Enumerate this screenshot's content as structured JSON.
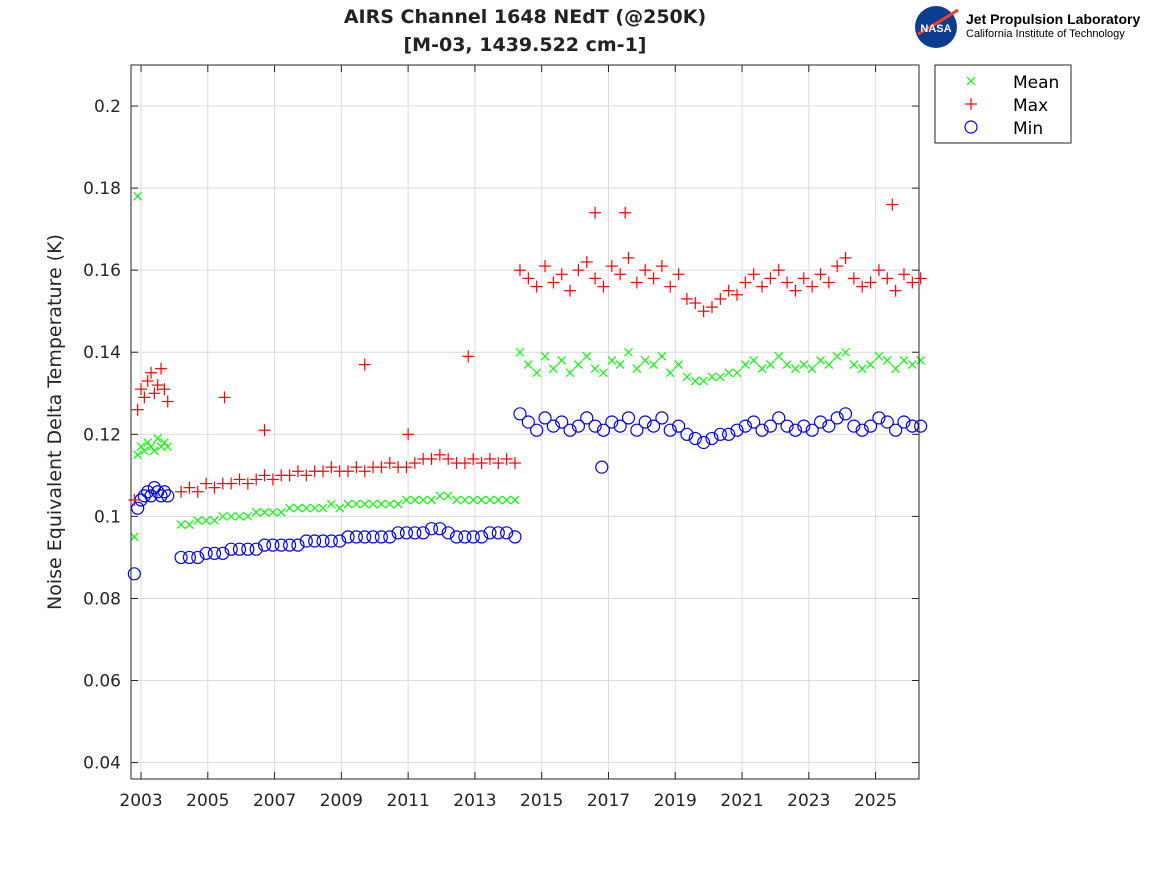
{
  "logo": {
    "org": "Jet Propulsion Laboratory",
    "sub": "California Institute of Technology",
    "badge": "NASA"
  },
  "chart_data": {
    "type": "scatter",
    "title": [
      "AIRS Channel 1648 NEdT (@250K)",
      "[M-03, 1439.522 cm-1]"
    ],
    "xlabel": "",
    "ylabel": "Noise Equivalent Delta Temperature (K)",
    "xlim": [
      2002.7,
      2026.3
    ],
    "ylim": [
      0.036,
      0.21
    ],
    "xticks": [
      2003,
      2005,
      2007,
      2009,
      2011,
      2013,
      2015,
      2017,
      2019,
      2021,
      2023,
      2025
    ],
    "yticks": [
      0.04,
      0.06,
      0.08,
      0.1,
      0.12,
      0.14,
      0.16,
      0.18,
      0.2
    ],
    "ytick_labels": [
      "0.04",
      "0.06",
      "0.08",
      "0.1",
      "0.12",
      "0.14",
      "0.16",
      "0.18",
      "0.2"
    ],
    "grid": true,
    "legend_placement": "outside-top-right",
    "x": [
      2002.8,
      2002.9,
      2003.0,
      2003.1,
      2003.2,
      2003.3,
      2003.4,
      2003.5,
      2003.6,
      2003.7,
      2003.8,
      2004.2,
      2004.45,
      2004.7,
      2004.95,
      2005.2,
      2005.45,
      2005.7,
      2005.95,
      2006.2,
      2006.45,
      2006.7,
      2006.95,
      2007.2,
      2007.45,
      2007.7,
      2007.95,
      2008.2,
      2008.45,
      2008.7,
      2008.95,
      2009.2,
      2009.45,
      2009.7,
      2009.95,
      2010.2,
      2010.45,
      2010.7,
      2010.95,
      2011.2,
      2011.45,
      2011.7,
      2011.95,
      2012.2,
      2012.45,
      2012.7,
      2012.95,
      2013.2,
      2013.45,
      2013.7,
      2013.95,
      2014.2,
      2014.35,
      2014.6,
      2014.85,
      2015.1,
      2015.35,
      2015.6,
      2015.85,
      2016.1,
      2016.35,
      2016.6,
      2016.85,
      2017.1,
      2017.35,
      2017.6,
      2017.85,
      2018.1,
      2018.35,
      2018.6,
      2018.85,
      2019.1,
      2019.35,
      2019.6,
      2019.85,
      2020.1,
      2020.35,
      2020.6,
      2020.85,
      2021.1,
      2021.35,
      2021.6,
      2021.85,
      2022.1,
      2022.35,
      2022.6,
      2022.85,
      2023.1,
      2023.35,
      2023.6,
      2023.85,
      2024.1,
      2024.35,
      2024.6,
      2024.85,
      2025.1,
      2025.35,
      2025.6,
      2025.85,
      2026.1,
      2026.35
    ],
    "series": [
      {
        "name": "Mean",
        "marker": "x",
        "color": "#00ff00",
        "values": [
          0.095,
          0.115,
          0.117,
          0.116,
          0.118,
          0.117,
          0.116,
          0.119,
          0.117,
          0.118,
          0.117,
          0.098,
          0.098,
          0.099,
          0.099,
          0.099,
          0.1,
          0.1,
          0.1,
          0.1,
          0.101,
          0.101,
          0.101,
          0.101,
          0.102,
          0.102,
          0.102,
          0.102,
          0.102,
          0.103,
          0.102,
          0.103,
          0.103,
          0.103,
          0.103,
          0.103,
          0.103,
          0.103,
          0.104,
          0.104,
          0.104,
          0.104,
          0.105,
          0.105,
          0.104,
          0.104,
          0.104,
          0.104,
          0.104,
          0.104,
          0.104,
          0.104,
          0.14,
          0.137,
          0.135,
          0.139,
          0.136,
          0.138,
          0.135,
          0.137,
          0.139,
          0.136,
          0.135,
          0.138,
          0.137,
          0.14,
          0.136,
          0.138,
          0.137,
          0.139,
          0.135,
          0.137,
          0.134,
          0.133,
          0.133,
          0.134,
          0.134,
          0.135,
          0.135,
          0.137,
          0.138,
          0.136,
          0.137,
          0.139,
          0.137,
          0.136,
          0.137,
          0.136,
          0.138,
          0.137,
          0.139,
          0.14,
          0.137,
          0.136,
          0.137,
          0.139,
          0.138,
          0.136,
          0.138,
          0.137,
          0.138
        ],
        "extra_points": [
          [
            2002.9,
            0.178
          ]
        ]
      },
      {
        "name": "Max",
        "marker": "+",
        "color": "#ff0000",
        "values": [
          0.104,
          0.126,
          0.131,
          0.129,
          0.133,
          0.135,
          0.13,
          0.132,
          0.136,
          0.131,
          0.128,
          0.106,
          0.107,
          0.106,
          0.108,
          0.107,
          0.108,
          0.108,
          0.109,
          0.108,
          0.109,
          0.11,
          0.109,
          0.11,
          0.11,
          0.111,
          0.11,
          0.111,
          0.111,
          0.112,
          0.111,
          0.111,
          0.112,
          0.111,
          0.112,
          0.112,
          0.113,
          0.112,
          0.112,
          0.113,
          0.114,
          0.114,
          0.115,
          0.114,
          0.113,
          0.113,
          0.114,
          0.113,
          0.114,
          0.113,
          0.114,
          0.113,
          0.16,
          0.158,
          0.156,
          0.161,
          0.157,
          0.159,
          0.155,
          0.16,
          0.162,
          0.158,
          0.156,
          0.161,
          0.159,
          0.163,
          0.157,
          0.16,
          0.158,
          0.161,
          0.156,
          0.159,
          0.153,
          0.152,
          0.15,
          0.151,
          0.153,
          0.155,
          0.154,
          0.157,
          0.159,
          0.156,
          0.158,
          0.16,
          0.157,
          0.155,
          0.158,
          0.156,
          0.159,
          0.157,
          0.161,
          0.163,
          0.158,
          0.156,
          0.157,
          0.16,
          0.158,
          0.155,
          0.159,
          0.157,
          0.158
        ],
        "extra_points": [
          [
            2005.5,
            0.129
          ],
          [
            2006.7,
            0.121
          ],
          [
            2009.7,
            0.137
          ],
          [
            2011.0,
            0.12
          ],
          [
            2012.8,
            0.139
          ],
          [
            2016.6,
            0.174
          ],
          [
            2017.5,
            0.174
          ],
          [
            2025.5,
            0.176
          ]
        ]
      },
      {
        "name": "Min",
        "marker": "o",
        "color": "#0000ff",
        "values": [
          0.086,
          0.102,
          0.104,
          0.105,
          0.106,
          0.105,
          0.107,
          0.106,
          0.105,
          0.106,
          0.105,
          0.09,
          0.09,
          0.09,
          0.091,
          0.091,
          0.091,
          0.092,
          0.092,
          0.092,
          0.092,
          0.093,
          0.093,
          0.093,
          0.093,
          0.093,
          0.094,
          0.094,
          0.094,
          0.094,
          0.094,
          0.095,
          0.095,
          0.095,
          0.095,
          0.095,
          0.095,
          0.096,
          0.096,
          0.096,
          0.096,
          0.097,
          0.097,
          0.096,
          0.095,
          0.095,
          0.095,
          0.095,
          0.096,
          0.096,
          0.096,
          0.095,
          0.125,
          0.123,
          0.121,
          0.124,
          0.122,
          0.123,
          0.121,
          0.122,
          0.124,
          0.122,
          0.121,
          0.123,
          0.122,
          0.124,
          0.121,
          0.123,
          0.122,
          0.124,
          0.121,
          0.122,
          0.12,
          0.119,
          0.118,
          0.119,
          0.12,
          0.12,
          0.121,
          0.122,
          0.123,
          0.121,
          0.122,
          0.124,
          0.122,
          0.121,
          0.122,
          0.121,
          0.123,
          0.122,
          0.124,
          0.125,
          0.122,
          0.121,
          0.122,
          0.124,
          0.123,
          0.121,
          0.123,
          0.122,
          0.122
        ],
        "extra_points": [
          [
            2016.8,
            0.112
          ]
        ]
      }
    ]
  }
}
